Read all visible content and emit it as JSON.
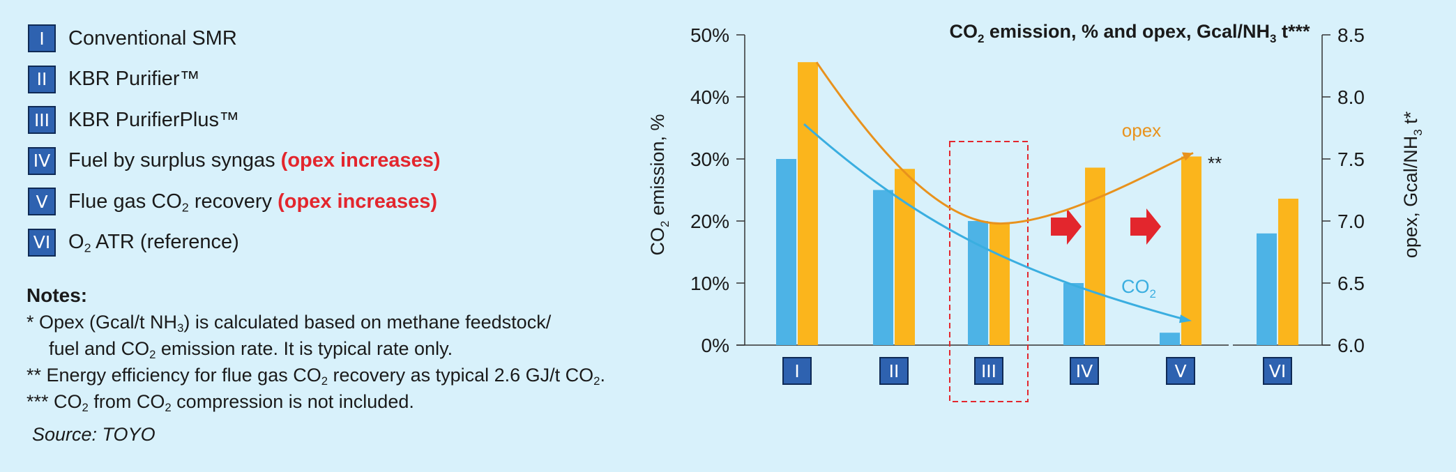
{
  "legend": [
    {
      "numeral": "I",
      "pre": "Conventional SMR",
      "sub": "",
      "post": "",
      "note": ""
    },
    {
      "numeral": "II",
      "pre": "KBR Purifier™",
      "sub": "",
      "post": "",
      "note": ""
    },
    {
      "numeral": "III",
      "pre": "KBR PurifierPlus™",
      "sub": "",
      "post": "",
      "note": ""
    },
    {
      "numeral": "IV",
      "pre": "Fuel by surplus syngas ",
      "sub": "",
      "post": "",
      "note": "(opex increases)"
    },
    {
      "numeral": "V",
      "pre": "Flue gas CO",
      "sub": "2",
      "post": " recovery ",
      "note": "(opex increases)"
    },
    {
      "numeral": "VI",
      "pre": "O",
      "sub": "2",
      "post": " ATR (reference)",
      "note": ""
    }
  ],
  "notes": {
    "title": "Notes:",
    "line1": {
      "a": "* Opex (Gcal/t NH",
      "sub": "3",
      "b": ") is calculated based on methane feedstock/"
    },
    "line2": {
      "a": "fuel and CO",
      "sub": "2",
      "b": " emission rate. It is typical rate only."
    },
    "line3": {
      "a": "** Energy efficiency for flue gas CO",
      "sub": "2",
      "b": " recovery as typical 2.6 GJ/t CO",
      "sub2": "2",
      "c": "."
    },
    "line4": {
      "a": "*** CO",
      "sub": "2",
      "b": " from CO",
      "sub2": "2",
      "c": " compression is not included."
    }
  },
  "source": "Source: TOYO",
  "chart_data": {
    "type": "bar",
    "title": {
      "a": "CO",
      "sub": "2",
      "b": " emission, % and opex, Gcal/NH",
      "sub2": "3",
      "c": " t***"
    },
    "categories": [
      "I",
      "II",
      "III",
      "IV",
      "V",
      "VI"
    ],
    "series": [
      {
        "name": "CO2 emission",
        "axis": "left",
        "values": [
          30,
          25,
          20,
          10,
          2,
          18
        ],
        "color": "#4db3e6"
      },
      {
        "name": "opex",
        "axis": "right",
        "values": [
          8.28,
          7.42,
          6.98,
          7.43,
          7.52,
          7.18
        ],
        "color": "#fbb51c"
      }
    ],
    "ylabel_left": {
      "a": "CO",
      "sub": "2",
      "b": " emission, %"
    },
    "ylabel_right": {
      "a": "opex, Gcal/NH",
      "sub": "3",
      "b": " t*"
    },
    "ylim_left": [
      0,
      50
    ],
    "ylim_right": [
      6.0,
      8.5
    ],
    "yticks_left": [
      "0%",
      "10%",
      "20%",
      "30%",
      "40%",
      "50%"
    ],
    "yticks_right": [
      "6.0",
      "6.5",
      "7.0",
      "7.5",
      "8.0",
      "8.5"
    ],
    "annotations": {
      "opex_label": "opex",
      "co2_label": {
        "a": "CO",
        "sub": "2"
      },
      "double_star": "**"
    },
    "highlight_category": "III",
    "arrow_color": "#e3262d",
    "opex_trend_color": "#e8921d",
    "co2_trend_color": "#3aaee0",
    "box_color": "#2e62b0"
  }
}
